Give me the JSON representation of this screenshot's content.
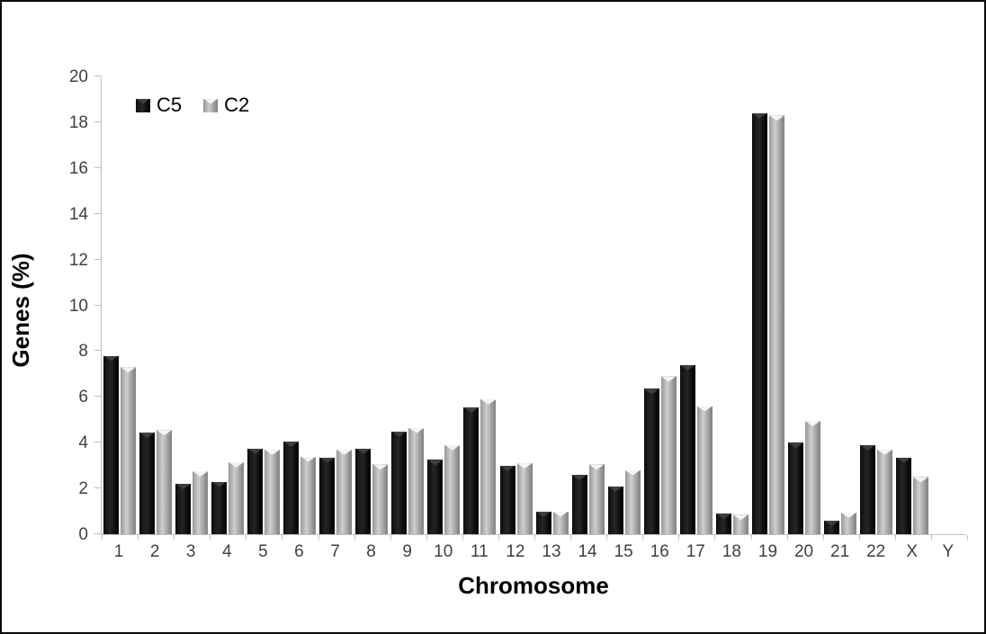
{
  "chart_data": {
    "type": "bar",
    "title": "",
    "xlabel": "Chromosome",
    "ylabel": "Genes (%)",
    "categories": [
      "1",
      "2",
      "3",
      "4",
      "5",
      "6",
      "7",
      "8",
      "9",
      "10",
      "11",
      "12",
      "13",
      "14",
      "15",
      "16",
      "17",
      "18",
      "19",
      "20",
      "21",
      "22",
      "X",
      "Y"
    ],
    "series": [
      {
        "name": "C5",
        "color": "#0d0d0d",
        "values": [
          7.8,
          4.45,
          2.2,
          2.3,
          3.75,
          4.05,
          3.35,
          3.75,
          4.5,
          3.25,
          5.55,
          3.0,
          1.0,
          2.6,
          2.1,
          6.35,
          7.4,
          0.9,
          18.4,
          4.0,
          0.6,
          3.9,
          3.35,
          0
        ]
      },
      {
        "name": "C2",
        "color": "#b5b5b5",
        "values": [
          7.3,
          4.55,
          2.75,
          3.15,
          3.7,
          3.4,
          3.7,
          3.05,
          4.65,
          3.9,
          5.9,
          3.1,
          1.0,
          3.05,
          2.8,
          6.9,
          5.6,
          0.85,
          18.3,
          4.95,
          0.95,
          3.7,
          2.5,
          0
        ]
      }
    ],
    "ylim": [
      0,
      20
    ],
    "ytick_step": 2,
    "grid": false,
    "legend_position": "top-left-inside",
    "axis_color": "#bfbfbf",
    "tick_label_color": "#404040"
  }
}
